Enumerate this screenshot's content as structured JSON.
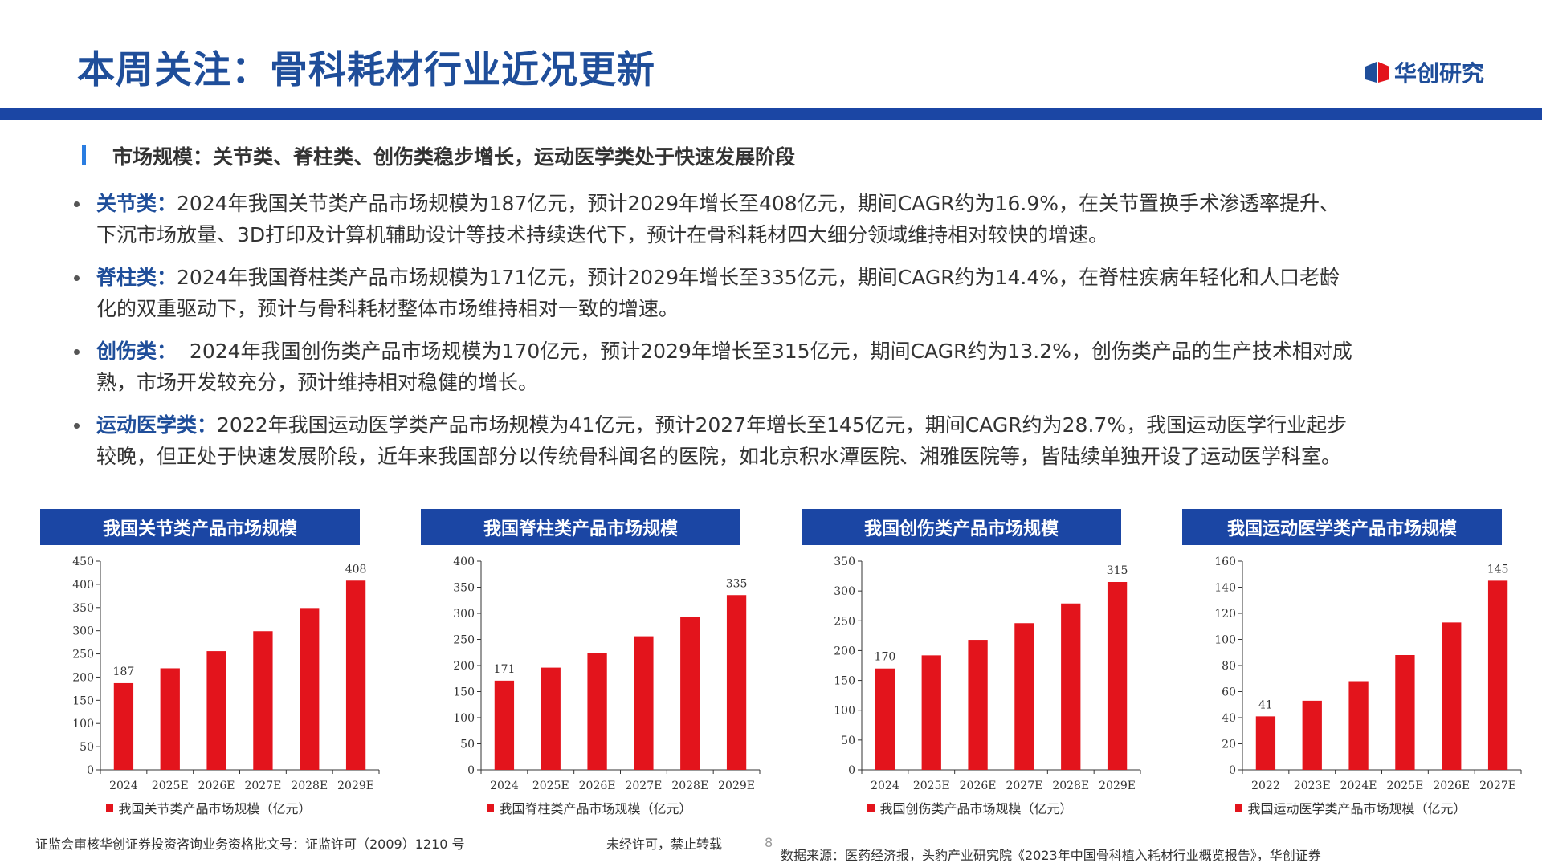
{
  "header": {
    "title": "本周关注：骨科耗材行业近况更新",
    "logo_text": "华创研究"
  },
  "subheading": "市场规模：关节类、脊柱类、创伤类稳步增长，运动医学类处于快速发展阶段",
  "bullets": [
    {
      "label": "关节类：",
      "text": "2024年我国关节类产品市场规模为187亿元，预计2029年增长至408亿元，期间CAGR约为16.9%，在关节置换手术渗透率提升、下沉市场放量、3D打印及计算机辅助设计等技术持续迭代下，预计在骨科耗材四大细分领域维持相对较快的增速。"
    },
    {
      "label": "脊柱类：",
      "text": "2024年我国脊柱类产品市场规模为171亿元，预计2029年增长至335亿元，期间CAGR约为14.4%，在脊柱疾病年轻化和人口老龄化的双重驱动下，预计与骨科耗材整体市场维持相对一致的增速。"
    },
    {
      "label": "创伤类：",
      "text": "  2024年我国创伤类产品市场规模为170亿元，预计2029年增长至315亿元，期间CAGR约为13.2%，创伤类产品的生产技术相对成熟，市场开发较充分，预计维持相对稳健的增长。"
    },
    {
      "label": "运动医学类：",
      "text": "2022年我国运动医学类产品市场规模为41亿元，预计2027年增长至145亿元，期间CAGR约为28.7%，我国运动医学行业起步较晚，但正处于快速发展阶段，近年来我国部分以传统骨科闻名的医院，如北京积水潭医院、湘雅医院等，皆陆续单独开设了运动医学科室。"
    }
  ],
  "chart_data": [
    {
      "type": "bar",
      "title": "我国关节类产品市场规模",
      "categories": [
        "2024",
        "2025E",
        "2026E",
        "2027E",
        "2028E",
        "2029E"
      ],
      "series": [
        {
          "name": "我国关节类产品市场规模（亿元）",
          "values": [
            187,
            219,
            256,
            299,
            349,
            408
          ]
        }
      ],
      "ylim": [
        0,
        450
      ],
      "yticks": [
        0,
        50,
        100,
        150,
        200,
        250,
        300,
        350,
        400,
        450
      ],
      "labels": [
        {
          "index": 0,
          "text": "187"
        },
        {
          "index": 5,
          "text": "408"
        }
      ],
      "grid": false,
      "legend": "bottom",
      "color": "#e3141c"
    },
    {
      "type": "bar",
      "title": "我国脊柱类产品市场规模",
      "categories": [
        "2024",
        "2025E",
        "2026E",
        "2027E",
        "2028E",
        "2029E"
      ],
      "series": [
        {
          "name": "我国脊柱类产品市场规模（亿元）",
          "values": [
            171,
            196,
            224,
            256,
            293,
            335
          ]
        }
      ],
      "ylim": [
        0,
        400
      ],
      "yticks": [
        0,
        50,
        100,
        150,
        200,
        250,
        300,
        350,
        400
      ],
      "labels": [
        {
          "index": 0,
          "text": "171"
        },
        {
          "index": 5,
          "text": "335"
        }
      ],
      "grid": false,
      "legend": "bottom",
      "color": "#e3141c"
    },
    {
      "type": "bar",
      "title": "我国创伤类产品市场规模",
      "categories": [
        "2024",
        "2025E",
        "2026E",
        "2027E",
        "2028E",
        "2029E"
      ],
      "series": [
        {
          "name": "我国创伤类产品市场规模（亿元）",
          "values": [
            170,
            192,
            218,
            246,
            279,
            315
          ]
        }
      ],
      "ylim": [
        0,
        350
      ],
      "yticks": [
        0,
        50,
        100,
        150,
        200,
        250,
        300,
        350
      ],
      "labels": [
        {
          "index": 0,
          "text": "170"
        },
        {
          "index": 5,
          "text": "315"
        }
      ],
      "grid": false,
      "legend": "bottom",
      "color": "#e3141c"
    },
    {
      "type": "bar",
      "title": "我国运动医学类产品市场规模",
      "categories": [
        "2022",
        "2023E",
        "2024E",
        "2025E",
        "2026E",
        "2027E"
      ],
      "series": [
        {
          "name": "我国运动医学类产品市场规模（亿元）",
          "values": [
            41,
            53,
            68,
            88,
            113,
            145
          ]
        }
      ],
      "ylim": [
        0,
        160
      ],
      "yticks": [
        0,
        20,
        40,
        60,
        80,
        100,
        120,
        140,
        160
      ],
      "labels": [
        {
          "index": 0,
          "text": "41"
        },
        {
          "index": 5,
          "text": "145"
        }
      ],
      "grid": false,
      "legend": "bottom",
      "color": "#e3141c"
    }
  ],
  "footer": {
    "license": "证监会审核华创证券投资咨询业务资格批文号：证监许可（2009）1210 号",
    "notice": "未经许可，禁止转载",
    "page": "8",
    "source": "数据来源：医药经济报，头豹产业研究院《2023年中国骨科植入耗材行业概览报告》，华创证券"
  },
  "colors": {
    "brand": "#1f4e9a",
    "bar": "#e3141c",
    "header_bar": "#1b46a4"
  }
}
